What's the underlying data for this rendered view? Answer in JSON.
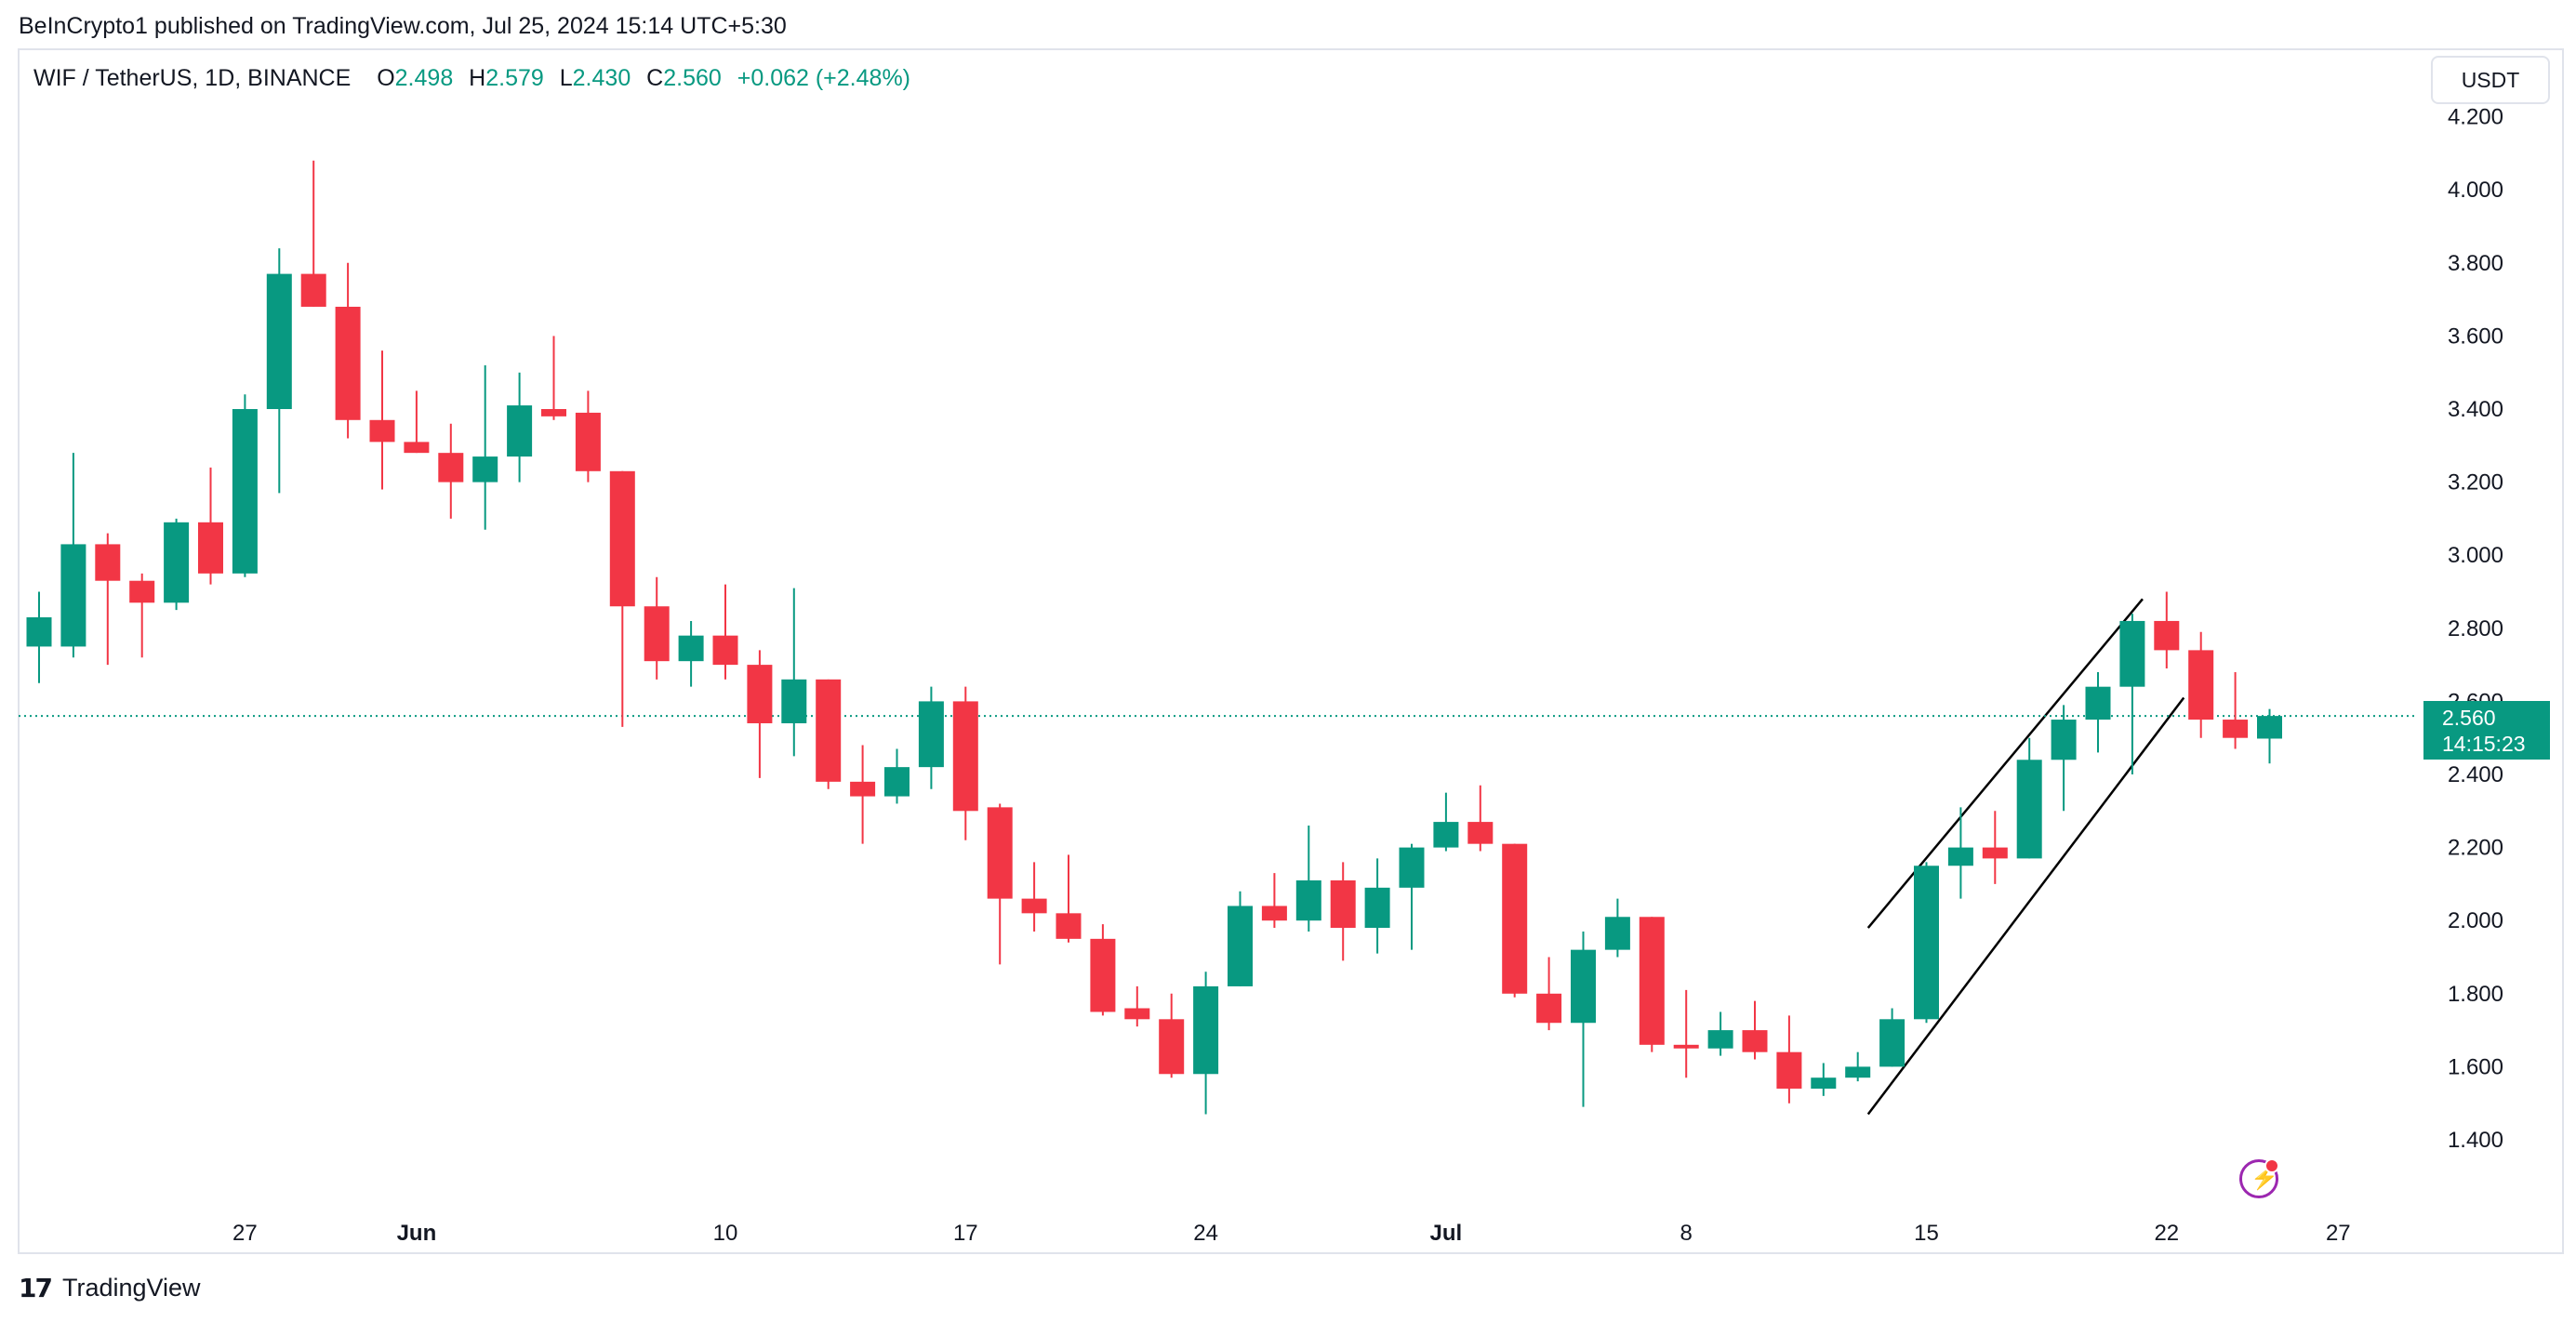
{
  "header": {
    "published": "BeInCrypto1 published on TradingView.com, Jul 25, 2024 15:14 UTC+5:30"
  },
  "legend": {
    "symbol": "WIF / TetherUS, 1D, BINANCE",
    "o_label": "O",
    "o_value": "2.498",
    "h_label": "H",
    "h_value": "2.579",
    "l_label": "L",
    "l_value": "2.430",
    "c_label": "C",
    "c_value": "2.560",
    "change": "+0.062 (+2.48%)"
  },
  "currency_button": "USDT",
  "price_badge": {
    "price": "2.560",
    "countdown": "14:15:23"
  },
  "footer": {
    "logo_text": "TradingView"
  },
  "colors": {
    "up": "#089981",
    "down": "#f23645",
    "grid_text": "#131722",
    "last_price_line": "#089981"
  },
  "chart_data": {
    "type": "candlestick",
    "ylim": [
      1.28,
      4.28
    ],
    "y_ticks": [
      1.4,
      1.6,
      1.8,
      2.0,
      2.2,
      2.4,
      2.6,
      2.8,
      3.0,
      3.2,
      3.4,
      3.6,
      3.8,
      4.0,
      4.2
    ],
    "y_tick_labels": [
      "1.400",
      "1.600",
      "1.800",
      "2.000",
      "2.200",
      "2.400",
      "2.600",
      "2.800",
      "3.000",
      "3.200",
      "3.400",
      "3.600",
      "3.800",
      "4.000",
      "4.200"
    ],
    "x_ticks": [
      {
        "label": "27",
        "index": 6,
        "bold": false
      },
      {
        "label": "Jun",
        "index": 11,
        "bold": true
      },
      {
        "label": "10",
        "index": 20,
        "bold": false
      },
      {
        "label": "17",
        "index": 27,
        "bold": false
      },
      {
        "label": "24",
        "index": 34,
        "bold": false
      },
      {
        "label": "Jul",
        "index": 41,
        "bold": true
      },
      {
        "label": "8",
        "index": 48,
        "bold": false
      },
      {
        "label": "15",
        "index": 55,
        "bold": false
      },
      {
        "label": "22",
        "index": 62,
        "bold": false
      },
      {
        "label": "27",
        "index": 67,
        "bold": false
      }
    ],
    "last_price": 2.56,
    "candles": [
      {
        "o": 2.75,
        "h": 2.9,
        "l": 2.65,
        "c": 2.83
      },
      {
        "o": 2.75,
        "h": 3.28,
        "l": 2.72,
        "c": 3.03
      },
      {
        "o": 3.03,
        "h": 3.06,
        "l": 2.7,
        "c": 2.93
      },
      {
        "o": 2.93,
        "h": 2.95,
        "l": 2.72,
        "c": 2.87
      },
      {
        "o": 2.87,
        "h": 3.1,
        "l": 2.85,
        "c": 3.09
      },
      {
        "o": 3.09,
        "h": 3.24,
        "l": 2.92,
        "c": 2.95
      },
      {
        "o": 2.95,
        "h": 3.44,
        "l": 2.94,
        "c": 3.4
      },
      {
        "o": 3.4,
        "h": 3.84,
        "l": 3.17,
        "c": 3.77
      },
      {
        "o": 3.77,
        "h": 4.08,
        "l": 3.68,
        "c": 3.68
      },
      {
        "o": 3.68,
        "h": 3.8,
        "l": 3.32,
        "c": 3.37
      },
      {
        "o": 3.37,
        "h": 3.56,
        "l": 3.18,
        "c": 3.31
      },
      {
        "o": 3.31,
        "h": 3.45,
        "l": 3.28,
        "c": 3.28
      },
      {
        "o": 3.28,
        "h": 3.36,
        "l": 3.1,
        "c": 3.2
      },
      {
        "o": 3.2,
        "h": 3.52,
        "l": 3.07,
        "c": 3.27
      },
      {
        "o": 3.27,
        "h": 3.5,
        "l": 3.2,
        "c": 3.41
      },
      {
        "o": 3.4,
        "h": 3.6,
        "l": 3.37,
        "c": 3.38
      },
      {
        "o": 3.39,
        "h": 3.45,
        "l": 3.2,
        "c": 3.23
      },
      {
        "o": 3.23,
        "h": 3.23,
        "l": 2.53,
        "c": 2.86
      },
      {
        "o": 2.86,
        "h": 2.94,
        "l": 2.66,
        "c": 2.71
      },
      {
        "o": 2.71,
        "h": 2.82,
        "l": 2.64,
        "c": 2.78
      },
      {
        "o": 2.78,
        "h": 2.92,
        "l": 2.66,
        "c": 2.7
      },
      {
        "o": 2.7,
        "h": 2.74,
        "l": 2.39,
        "c": 2.54
      },
      {
        "o": 2.54,
        "h": 2.91,
        "l": 2.45,
        "c": 2.66
      },
      {
        "o": 2.66,
        "h": 2.66,
        "l": 2.36,
        "c": 2.38
      },
      {
        "o": 2.38,
        "h": 2.48,
        "l": 2.21,
        "c": 2.34
      },
      {
        "o": 2.34,
        "h": 2.47,
        "l": 2.32,
        "c": 2.42
      },
      {
        "o": 2.42,
        "h": 2.64,
        "l": 2.36,
        "c": 2.6
      },
      {
        "o": 2.6,
        "h": 2.64,
        "l": 2.22,
        "c": 2.3
      },
      {
        "o": 2.31,
        "h": 2.32,
        "l": 1.88,
        "c": 2.06
      },
      {
        "o": 2.06,
        "h": 2.16,
        "l": 1.97,
        "c": 2.02
      },
      {
        "o": 2.02,
        "h": 2.18,
        "l": 1.94,
        "c": 1.95
      },
      {
        "o": 1.95,
        "h": 1.99,
        "l": 1.74,
        "c": 1.75
      },
      {
        "o": 1.76,
        "h": 1.82,
        "l": 1.71,
        "c": 1.73
      },
      {
        "o": 1.73,
        "h": 1.8,
        "l": 1.57,
        "c": 1.58
      },
      {
        "o": 1.58,
        "h": 1.86,
        "l": 1.47,
        "c": 1.82
      },
      {
        "o": 1.82,
        "h": 2.08,
        "l": 1.82,
        "c": 2.04
      },
      {
        "o": 2.04,
        "h": 2.13,
        "l": 1.98,
        "c": 2.0
      },
      {
        "o": 2.0,
        "h": 2.26,
        "l": 1.97,
        "c": 2.11
      },
      {
        "o": 2.11,
        "h": 2.16,
        "l": 1.89,
        "c": 1.98
      },
      {
        "o": 1.98,
        "h": 2.17,
        "l": 1.91,
        "c": 2.09
      },
      {
        "o": 2.09,
        "h": 2.21,
        "l": 1.92,
        "c": 2.2
      },
      {
        "o": 2.2,
        "h": 2.35,
        "l": 2.19,
        "c": 2.27
      },
      {
        "o": 2.27,
        "h": 2.37,
        "l": 2.19,
        "c": 2.21
      },
      {
        "o": 2.21,
        "h": 2.21,
        "l": 1.79,
        "c": 1.8
      },
      {
        "o": 1.8,
        "h": 1.9,
        "l": 1.7,
        "c": 1.72
      },
      {
        "o": 1.72,
        "h": 1.97,
        "l": 1.49,
        "c": 1.92
      },
      {
        "o": 1.92,
        "h": 2.06,
        "l": 1.9,
        "c": 2.01
      },
      {
        "o": 2.01,
        "h": 2.01,
        "l": 1.64,
        "c": 1.66
      },
      {
        "o": 1.66,
        "h": 1.81,
        "l": 1.57,
        "c": 1.65
      },
      {
        "o": 1.65,
        "h": 1.75,
        "l": 1.63,
        "c": 1.7
      },
      {
        "o": 1.7,
        "h": 1.78,
        "l": 1.62,
        "c": 1.64
      },
      {
        "o": 1.64,
        "h": 1.74,
        "l": 1.5,
        "c": 1.54
      },
      {
        "o": 1.54,
        "h": 1.61,
        "l": 1.52,
        "c": 1.57
      },
      {
        "o": 1.57,
        "h": 1.64,
        "l": 1.56,
        "c": 1.6
      },
      {
        "o": 1.6,
        "h": 1.76,
        "l": 1.6,
        "c": 1.73
      },
      {
        "o": 1.73,
        "h": 2.16,
        "l": 1.72,
        "c": 2.15
      },
      {
        "o": 2.15,
        "h": 2.31,
        "l": 2.06,
        "c": 2.2
      },
      {
        "o": 2.2,
        "h": 2.3,
        "l": 2.1,
        "c": 2.17
      },
      {
        "o": 2.17,
        "h": 2.5,
        "l": 2.17,
        "c": 2.44
      },
      {
        "o": 2.44,
        "h": 2.59,
        "l": 2.3,
        "c": 2.55
      },
      {
        "o": 2.55,
        "h": 2.68,
        "l": 2.46,
        "c": 2.64
      },
      {
        "o": 2.64,
        "h": 2.84,
        "l": 2.4,
        "c": 2.82
      },
      {
        "o": 2.82,
        "h": 2.9,
        "l": 2.69,
        "c": 2.74
      },
      {
        "o": 2.74,
        "h": 2.79,
        "l": 2.5,
        "c": 2.55
      },
      {
        "o": 2.55,
        "h": 2.68,
        "l": 2.47,
        "c": 2.5
      },
      {
        "o": 2.498,
        "h": 2.579,
        "l": 2.43,
        "c": 2.56
      }
    ],
    "trendlines": [
      {
        "from": {
          "index": 53.3,
          "price": 1.98
        },
        "to": {
          "index": 61.3,
          "price": 2.88
        }
      },
      {
        "from": {
          "index": 53.3,
          "price": 1.47
        },
        "to": {
          "index": 62.5,
          "price": 2.61
        }
      }
    ]
  }
}
